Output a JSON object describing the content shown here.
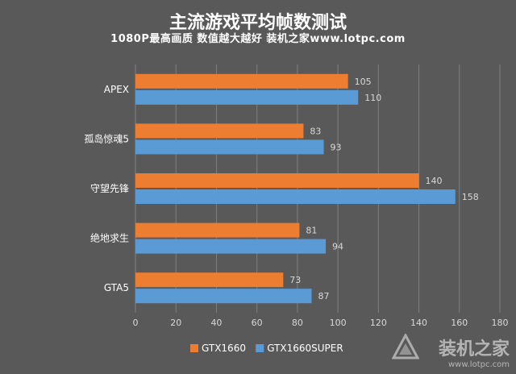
{
  "chart_data": {
    "type": "bar",
    "orientation": "horizontal",
    "title": "主流游戏平均帧数测试",
    "subtitle": "1080P最高画质 数值越大越好 装机之家www.lotpc.com",
    "categories": [
      "APEX",
      "孤岛惊魂5",
      "守望先锋",
      "绝地求生",
      "GTA5"
    ],
    "series": [
      {
        "name": "GTX1660",
        "color": "#ED7D31",
        "values": [
          105,
          83,
          140,
          81,
          73
        ]
      },
      {
        "name": "GTX1660SUPER",
        "color": "#5B9BD5",
        "values": [
          110,
          93,
          158,
          94,
          87
        ]
      }
    ],
    "xlim": [
      0,
      180
    ],
    "x_ticks": [
      "0",
      "20",
      "40",
      "60",
      "80",
      "100",
      "120",
      "140",
      "160",
      "180"
    ],
    "grid": "vertical",
    "legend_position": "bottom",
    "data_labels": true
  },
  "watermark": {
    "text": "装机之家",
    "url": "www.lotpc.com"
  },
  "colors": {
    "background": "#595959",
    "gridline": "#7f7f7f",
    "text": "#ffffff",
    "label": "#d9d9d9"
  }
}
